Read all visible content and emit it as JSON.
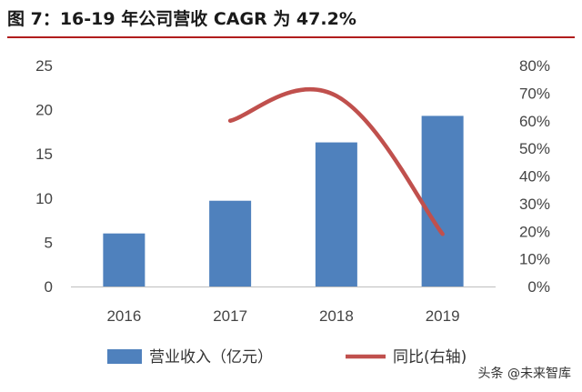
{
  "title": "图 7：16-19 年公司营收 CAGR 为 47.2%",
  "colors": {
    "bar": "#4f81bd",
    "line": "#c0504d",
    "title_rule": "#b11d1d"
  },
  "chart_data": {
    "type": "bar",
    "categories": [
      "2016",
      "2017",
      "2018",
      "2019"
    ],
    "series": [
      {
        "name": "营业收入（亿元）",
        "type": "bar",
        "axis": "left",
        "values": [
          6.0,
          9.7,
          16.3,
          19.3
        ]
      },
      {
        "name": "同比(右轴)",
        "type": "line",
        "axis": "right",
        "values": [
          null,
          0.6,
          0.69,
          0.19
        ]
      }
    ],
    "ylim": [
      0,
      25
    ],
    "y_ticks": [
      "0",
      "5",
      "10",
      "15",
      "20",
      "25"
    ],
    "y2lim": [
      0,
      0.8
    ],
    "y2_ticks": [
      "0%",
      "10%",
      "20%",
      "30%",
      "40%",
      "50%",
      "60%",
      "70%",
      "80%"
    ],
    "grid": false,
    "legend_position": "bottom"
  },
  "watermark": {
    "text": "头条 @未来智库",
    "icon": "at-icon"
  }
}
